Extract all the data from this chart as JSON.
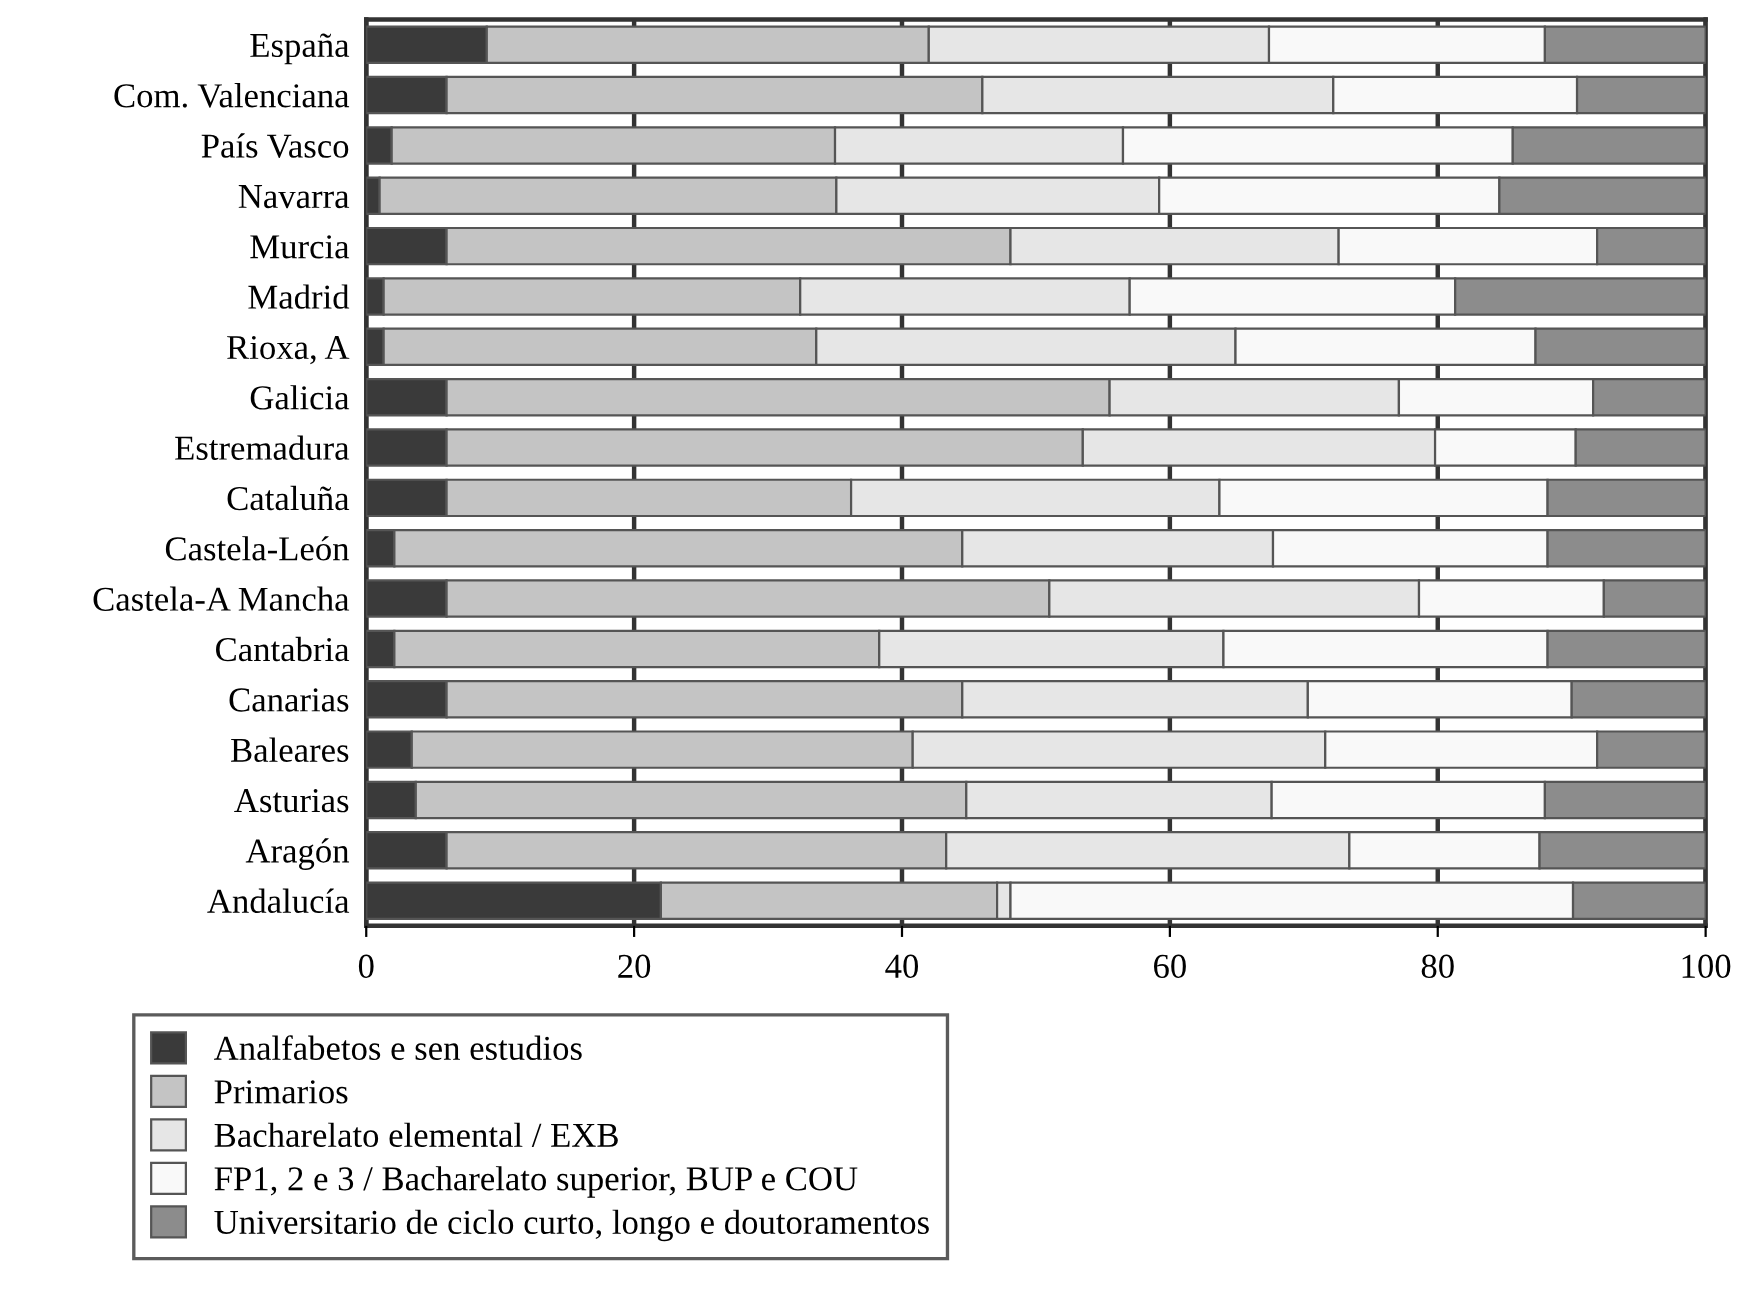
{
  "chart_data": {
    "type": "bar",
    "orientation": "horizontal",
    "stacked": true,
    "categories": [
      "España",
      "Com. Valenciana",
      "País Vasco",
      "Navarra",
      "Murcia",
      "Madrid",
      "Rioxa, A",
      "Galicia",
      "Estremadura",
      "Cataluña",
      "Castela-León",
      "Castela-A Mancha",
      "Cantabria",
      "Canarias",
      "Baleares",
      "Asturias",
      "Aragón",
      "Andalucía"
    ],
    "series": [
      {
        "name": "Analfabetos e sen estudios",
        "color": "#3a3a3a",
        "values": [
          9,
          6,
          1.9,
          1,
          6,
          1.3,
          1.3,
          6,
          6,
          6,
          2.1,
          6,
          2.1,
          6,
          3.4,
          3.7,
          6,
          22
        ]
      },
      {
        "name": "Primarios",
        "color": "#c4c4c4",
        "values": [
          33,
          40,
          33.1,
          34.1,
          42.1,
          31.1,
          32.3,
          49.5,
          47.5,
          30.2,
          42.4,
          45,
          36.2,
          38.5,
          37.4,
          41.1,
          37.3,
          25.1
        ]
      },
      {
        "name": "Bacharelato elemental / EXB",
        "color": "#e6e6e6",
        "values": [
          25.4,
          26.2,
          21.5,
          24.1,
          24.5,
          24.6,
          31.3,
          21.6,
          26.3,
          27.5,
          23.2,
          27.6,
          25.7,
          25.8,
          30.8,
          22.8,
          30.1,
          1
        ]
      },
      {
        "name": "FP1, 2 e 3 / Bacharelato superior, BUP e COU",
        "color": "#f9f9f9",
        "values": [
          20.6,
          18.2,
          29.1,
          25.4,
          19.3,
          24.3,
          22.4,
          14.5,
          10.5,
          24.5,
          20.5,
          13.8,
          24.2,
          19.7,
          20.3,
          20.4,
          14.2,
          42
        ]
      },
      {
        "name": "Universitario de ciclo curto, longo e doutoramentos",
        "color": "#8c8c8c",
        "values": [
          12,
          9.6,
          14.4,
          15.4,
          8.1,
          18.7,
          12.7,
          8.4,
          9.7,
          11.8,
          11.8,
          7.6,
          11.8,
          10,
          8.1,
          12,
          12.4,
          9.9
        ]
      }
    ],
    "xlim": [
      0,
      100
    ],
    "xticks": [
      0,
      20,
      40,
      60,
      80,
      100
    ],
    "grid": "x",
    "legend": "bottom"
  }
}
